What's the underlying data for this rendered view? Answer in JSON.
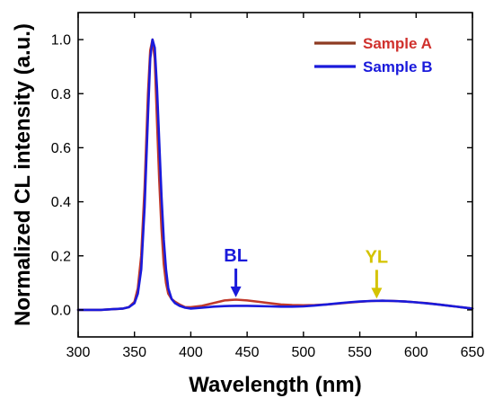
{
  "chart_data": {
    "type": "line",
    "title": "",
    "xlabel": "Wavelength (nm)",
    "ylabel": "Normalized CL intensity (a.u.)",
    "xlim": [
      300,
      650
    ],
    "ylim": [
      -0.1,
      1.1
    ],
    "xticks": [
      300,
      350,
      400,
      450,
      500,
      550,
      600,
      650
    ],
    "xtick_labels": [
      "300",
      "350",
      "400",
      "450",
      "500",
      "550",
      "600",
      "650"
    ],
    "yticks": [
      0.0,
      0.2,
      0.4,
      0.6,
      0.8,
      1.0
    ],
    "ytick_labels": [
      "0.0",
      "0.2",
      "0.4",
      "0.6",
      "0.8",
      "1.0"
    ],
    "grid": false,
    "legend_position": "top-right",
    "series": [
      {
        "name": "Sample A",
        "color": "#c0392b",
        "x": [
          300,
          320,
          340,
          345,
          350,
          353,
          356,
          359,
          362,
          364,
          366,
          368,
          370,
          372,
          374,
          376,
          378,
          380,
          383,
          386,
          390,
          395,
          400,
          410,
          420,
          430,
          440,
          450,
          460,
          470,
          480,
          490,
          500,
          510,
          520,
          530,
          540,
          550,
          560,
          570,
          580,
          590,
          600,
          610,
          620,
          630,
          640,
          650
        ],
        "y": [
          0.0,
          0.0,
          0.005,
          0.01,
          0.03,
          0.08,
          0.2,
          0.45,
          0.8,
          0.96,
          1.0,
          0.93,
          0.7,
          0.48,
          0.3,
          0.17,
          0.1,
          0.06,
          0.04,
          0.03,
          0.02,
          0.01,
          0.01,
          0.015,
          0.025,
          0.035,
          0.038,
          0.035,
          0.03,
          0.025,
          0.02,
          0.018,
          0.017,
          0.018,
          0.02,
          0.023,
          0.027,
          0.03,
          0.033,
          0.034,
          0.033,
          0.031,
          0.028,
          0.025,
          0.02,
          0.015,
          0.01,
          0.005
        ]
      },
      {
        "name": "Sample B",
        "color": "#1a1adb",
        "x": [
          300,
          320,
          340,
          345,
          350,
          353,
          356,
          359,
          362,
          364,
          366,
          368,
          370,
          372,
          374,
          376,
          378,
          380,
          383,
          386,
          390,
          395,
          400,
          410,
          420,
          430,
          440,
          450,
          460,
          470,
          480,
          490,
          500,
          510,
          520,
          530,
          540,
          550,
          560,
          570,
          580,
          590,
          600,
          610,
          620,
          630,
          640,
          650
        ],
        "y": [
          0.0,
          0.0,
          0.005,
          0.01,
          0.025,
          0.06,
          0.15,
          0.38,
          0.72,
          0.93,
          1.0,
          0.97,
          0.82,
          0.62,
          0.42,
          0.26,
          0.15,
          0.08,
          0.04,
          0.025,
          0.015,
          0.008,
          0.005,
          0.008,
          0.012,
          0.014,
          0.015,
          0.015,
          0.014,
          0.013,
          0.012,
          0.012,
          0.013,
          0.016,
          0.02,
          0.024,
          0.028,
          0.031,
          0.033,
          0.034,
          0.033,
          0.031,
          0.028,
          0.024,
          0.02,
          0.015,
          0.01,
          0.005
        ]
      }
    ],
    "legend": [
      {
        "label": "Sample A",
        "color": "#8e3b22",
        "text_color": "#d0312d"
      },
      {
        "label": "Sample B",
        "color": "#1a1adb",
        "text_color": "#1a1adb"
      }
    ],
    "annotations": [
      {
        "text": "BL",
        "x": 440,
        "y": 0.04,
        "color": "#1a1adb"
      },
      {
        "text": "YL",
        "x": 565,
        "y": 0.035,
        "color": "#d4c300"
      }
    ]
  }
}
